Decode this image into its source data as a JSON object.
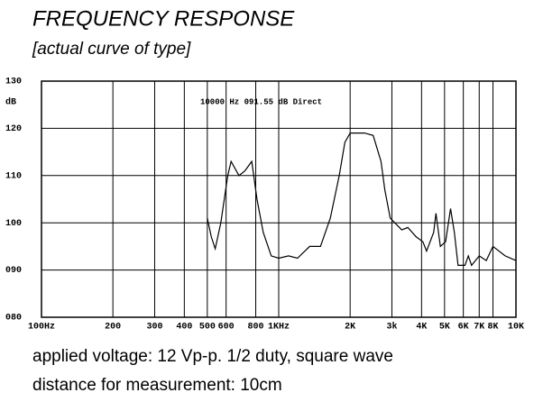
{
  "chart_data": {
    "type": "line",
    "title": "FREQUENCY RESPONSE",
    "subtitle": "[actual curve of type]",
    "y_label": "dB",
    "annotation": "10000 Hz  091.55 dB  Direct",
    "notes": [
      "applied voltage: 12 Vp-p. 1/2 duty, square wave",
      "distance for measurement: 10cm"
    ],
    "xscale": "log",
    "xlim": [
      100,
      10000
    ],
    "xticks": [
      {
        "value": 100,
        "label": "100Hz"
      },
      200,
      300,
      400,
      500,
      600,
      800,
      {
        "value": 1000,
        "label": "1KHz"
      },
      {
        "value": 2000,
        "label": "2K"
      },
      {
        "value": 3000,
        "label": "3k"
      },
      {
        "value": 4000,
        "label": "4K"
      },
      {
        "value": 5000,
        "label": "5K"
      },
      {
        "value": 6000,
        "label": "6K"
      },
      {
        "value": 7000,
        "label": "7K"
      },
      {
        "value": 8000,
        "label": "8K"
      },
      {
        "value": 10000,
        "label": "10K"
      }
    ],
    "ylim": [
      80,
      130
    ],
    "yticks": [
      {
        "value": 80,
        "label": "080"
      },
      {
        "value": 90,
        "label": "090"
      },
      100,
      110,
      120,
      130
    ],
    "grid": true,
    "series": [
      {
        "color": "#000000",
        "x": [
          500,
          520,
          540,
          570,
          610,
          630,
          680,
          720,
          770,
          810,
          860,
          930,
          1000,
          1100,
          1200,
          1350,
          1500,
          1650,
          1800,
          1900,
          2000,
          2300,
          2500,
          2700,
          2800,
          2950,
          3300,
          3500,
          3800,
          4050,
          4200,
          4500,
          4600,
          4800,
          5050,
          5300,
          5500,
          5700,
          6100,
          6300,
          6500,
          7000,
          7500,
          8000,
          9000,
          10000
        ],
        "values": [
          101,
          97,
          94.5,
          100,
          110,
          113,
          110,
          111,
          113,
          105,
          98,
          93,
          92.5,
          93,
          92.5,
          95,
          95,
          101,
          110,
          117,
          119,
          119,
          118.5,
          113,
          107,
          101,
          98.5,
          99,
          97,
          96,
          94,
          98,
          102,
          95,
          96,
          103,
          98,
          91,
          91,
          93,
          91,
          93,
          92,
          95,
          93,
          92
        ]
      }
    ]
  }
}
